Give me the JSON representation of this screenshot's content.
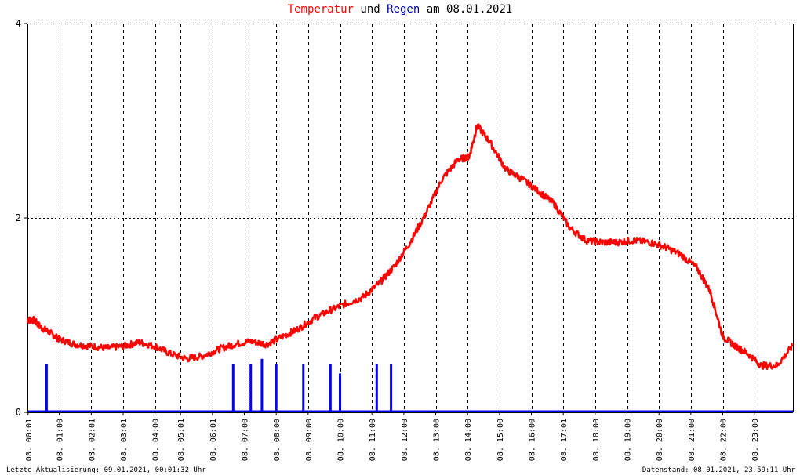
{
  "title": {
    "part1": "Temperatur",
    "part2": " und ",
    "part3": "Regen",
    "part4": " am 08.01.2021"
  },
  "footer": {
    "left": "Letzte Aktualisierung: 09.01.2021, 00:01:32 Uhr",
    "right": "Datenstand: 08.01.2021, 23:59:11 Uhr"
  },
  "colors": {
    "temperature": "#ff0000",
    "rain": "#0000ff",
    "grid": "#000000"
  },
  "chart_data": {
    "type": "line",
    "xlim": [
      0,
      24
    ],
    "ylim": [
      0,
      4
    ],
    "yticks": [
      "0",
      "2",
      "4"
    ],
    "grid": true,
    "xticks": [
      {
        "h": 0.02,
        "label": "08. 00:01"
      },
      {
        "h": 1,
        "label": "08. 01:00"
      },
      {
        "h": 2,
        "label": "08. 02:01"
      },
      {
        "h": 3,
        "label": "08. 03:01"
      },
      {
        "h": 4,
        "label": "08. 04:00"
      },
      {
        "h": 4.8,
        "label": "08. 05:01"
      },
      {
        "h": 5.8,
        "label": "08. 06:01"
      },
      {
        "h": 6.8,
        "label": "08. 07:00"
      },
      {
        "h": 7.8,
        "label": "08. 08:00"
      },
      {
        "h": 8.8,
        "label": "08. 09:00"
      },
      {
        "h": 9.8,
        "label": "08. 10:00"
      },
      {
        "h": 10.8,
        "label": "08. 11:00"
      },
      {
        "h": 11.8,
        "label": "08. 12:00"
      },
      {
        "h": 12.8,
        "label": "08. 13:00"
      },
      {
        "h": 13.8,
        "label": "08. 14:00"
      },
      {
        "h": 14.8,
        "label": "08. 15:00"
      },
      {
        "h": 15.8,
        "label": "08. 16:00"
      },
      {
        "h": 16.8,
        "label": "08. 17:01"
      },
      {
        "h": 17.8,
        "label": "08. 18:00"
      },
      {
        "h": 18.8,
        "label": "08. 19:00"
      },
      {
        "h": 19.8,
        "label": "08. 20:00"
      },
      {
        "h": 20.8,
        "label": "08. 21:00"
      },
      {
        "h": 21.8,
        "label": "08. 22:00"
      },
      {
        "h": 22.8,
        "label": "08. 23:00"
      }
    ],
    "series": [
      {
        "name": "Temperatur",
        "x": [
          0,
          0.2,
          0.4,
          0.7,
          1.0,
          1.5,
          2.0,
          2.5,
          3.0,
          3.5,
          4.0,
          4.5,
          5.0,
          5.5,
          6.0,
          6.5,
          7.0,
          7.5,
          8.0,
          8.5,
          9.0,
          9.5,
          10.0,
          10.5,
          11.0,
          11.5,
          12.0,
          12.5,
          13.0,
          13.5,
          13.85,
          14.1,
          14.5,
          15.0,
          15.5,
          16.0,
          16.5,
          17.0,
          17.5,
          18.0,
          18.5,
          19.0,
          19.5,
          20.0,
          20.5,
          21.0,
          21.4,
          21.8,
          22.2,
          22.6,
          23.0,
          23.5,
          23.98
        ],
        "values": [
          0.95,
          0.95,
          0.88,
          0.82,
          0.75,
          0.7,
          0.68,
          0.66,
          0.68,
          0.72,
          0.68,
          0.6,
          0.55,
          0.58,
          0.65,
          0.7,
          0.73,
          0.7,
          0.78,
          0.86,
          0.97,
          1.05,
          1.12,
          1.18,
          1.32,
          1.5,
          1.75,
          2.05,
          2.4,
          2.6,
          2.63,
          2.95,
          2.78,
          2.5,
          2.4,
          2.28,
          2.15,
          1.9,
          1.77,
          1.75,
          1.75,
          1.77,
          1.75,
          1.7,
          1.62,
          1.48,
          1.25,
          0.78,
          0.68,
          0.6,
          0.48,
          0.48,
          0.68
        ]
      },
      {
        "name": "Regen",
        "x": [
          0.6,
          6.45,
          7.0,
          7.35,
          7.8,
          8.65,
          9.5,
          9.8,
          10.95,
          11.4
        ],
        "values": [
          0.5,
          0.5,
          0.5,
          0.55,
          0.5,
          0.5,
          0.5,
          0.4,
          0.5,
          0.5
        ]
      }
    ]
  }
}
